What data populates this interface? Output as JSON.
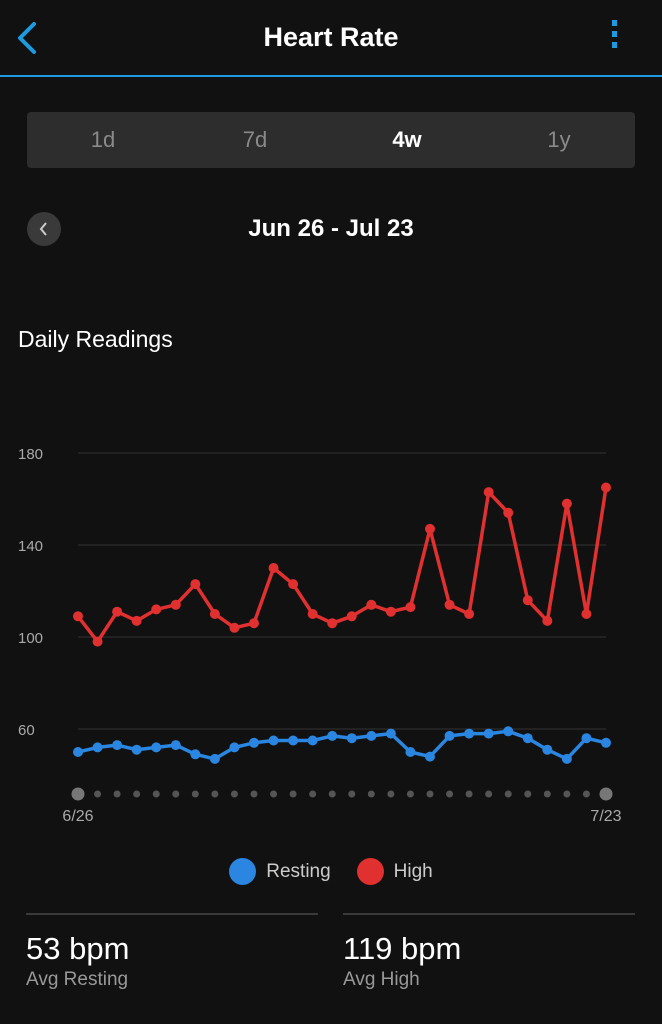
{
  "header": {
    "title": "Heart Rate",
    "back_icon": "chevron-left-icon",
    "menu_icon": "more-vertical-icon"
  },
  "tabs": [
    {
      "label": "1d"
    },
    {
      "label": "7d"
    },
    {
      "label": "4w",
      "active": true
    },
    {
      "label": "1y"
    }
  ],
  "date_range": "Jun 26 - Jul 23",
  "section_title": "Daily Readings",
  "chart_data": {
    "type": "line",
    "title": "Daily Readings",
    "x_labels": {
      "start": "6/26",
      "end": "7/23"
    },
    "y_ticks": [
      "180",
      "140",
      "100",
      "60"
    ],
    "y_tick_values": [
      180,
      140,
      100,
      60
    ],
    "ylim": [
      40,
      200
    ],
    "grid": true,
    "legend_placement": "bottom",
    "series": [
      {
        "name": "Resting",
        "color": "#2a86e0",
        "values": [
          50,
          52,
          53,
          51,
          52,
          53,
          49,
          47,
          52,
          54,
          55,
          55,
          55,
          57,
          56,
          57,
          58,
          50,
          48,
          57,
          58,
          58,
          59,
          56,
          51,
          47,
          56,
          54
        ]
      },
      {
        "name": "High",
        "color": "#e0302f",
        "values": [
          109,
          98,
          111,
          107,
          112,
          114,
          123,
          110,
          104,
          106,
          130,
          123,
          110,
          106,
          109,
          114,
          111,
          113,
          147,
          114,
          110,
          163,
          154,
          116,
          107,
          158,
          110,
          165
        ]
      }
    ]
  },
  "legend": [
    {
      "label": "Resting",
      "color": "#2a86e0"
    },
    {
      "label": "High",
      "color": "#e0302f"
    }
  ],
  "stats": [
    {
      "value": "53 bpm",
      "label": "Avg Resting"
    },
    {
      "value": "119 bpm",
      "label": "Avg High"
    }
  ]
}
